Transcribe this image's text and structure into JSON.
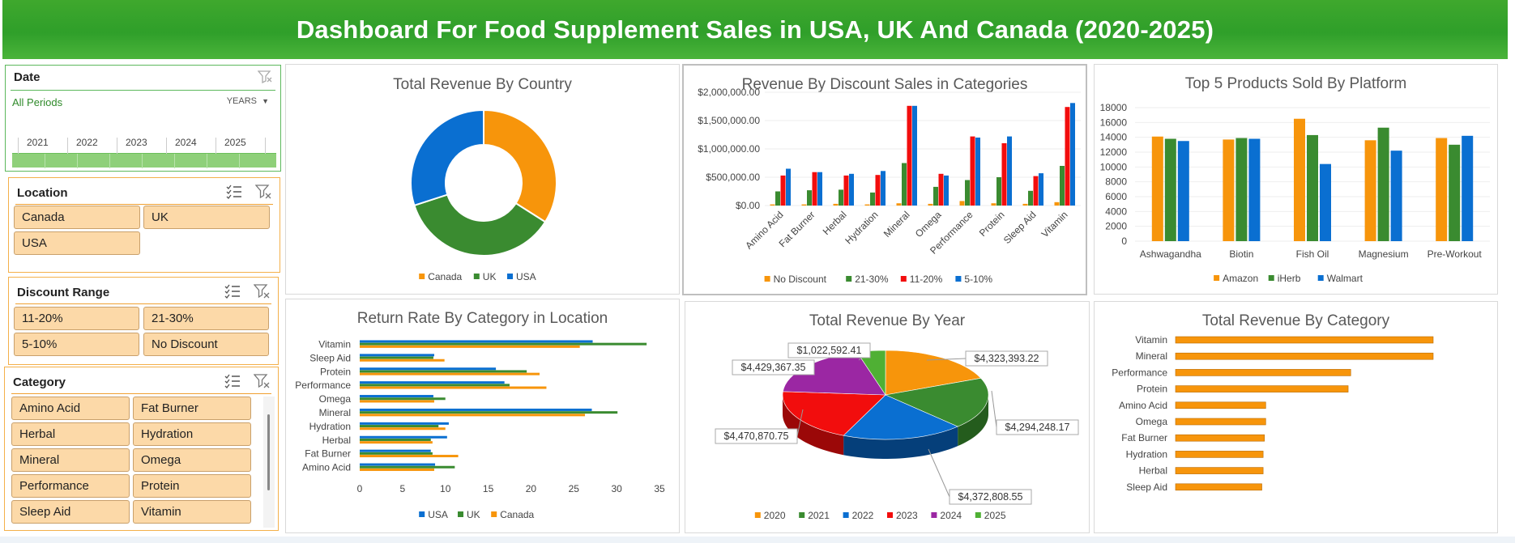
{
  "dashboard_title": "Dashboard For Food Supplement Sales in USA, UK And Canada (2020-2025)",
  "colors": {
    "orange": "#f7950b",
    "green": "#3a8b30",
    "blue": "#0a6fd1",
    "red": "#f20d0d",
    "purple": "#9b27a3",
    "light_green": "#4fb034",
    "title_green": "#34a52b"
  },
  "slicers": {
    "date": {
      "title": "Date",
      "period_label": "All Periods",
      "level": "YEARS",
      "timeline_years": [
        "2021",
        "2022",
        "2023",
        "2024",
        "2025"
      ]
    },
    "location": {
      "title": "Location",
      "items": [
        "Canada",
        "UK",
        "USA"
      ]
    },
    "discount": {
      "title": "Discount Range",
      "items": [
        "11-20%",
        "21-30%",
        "5-10%",
        "No Discount"
      ]
    },
    "category": {
      "title": "Category",
      "items": [
        "Amino Acid",
        "Fat Burner",
        "Herbal",
        "Hydration",
        "Mineral",
        "Omega",
        "Performance",
        "Protein",
        "Sleep Aid",
        "Vitamin"
      ]
    }
  },
  "chart_data": [
    {
      "id": "revenue_by_country",
      "type": "pie",
      "donut": true,
      "title": "Total Revenue By Country",
      "categories": [
        "Canada",
        "UK",
        "USA"
      ],
      "values": [
        34,
        36,
        30
      ],
      "colors": [
        "#f7950b",
        "#3a8b30",
        "#0a6fd1"
      ]
    },
    {
      "id": "discount_sales",
      "type": "bar",
      "title": "Revenue By Discount Sales in Categories",
      "categories": [
        "Amino Acid",
        "Fat Burner",
        "Herbal",
        "Hydration",
        "Mineral",
        "Omega",
        "Performance",
        "Protein",
        "Sleep Aid",
        "Vitamin"
      ],
      "yticks": [
        "$0.00",
        "$500,000.00",
        "$1,000,000.00",
        "$1,500,000.00",
        "$2,000,000.00"
      ],
      "ylim": [
        0,
        2000000
      ],
      "series": [
        {
          "name": "No Discount",
          "color": "#f7950b",
          "values": [
            20000,
            20000,
            30000,
            20000,
            40000,
            30000,
            80000,
            40000,
            30000,
            60000
          ]
        },
        {
          "name": "21-30%",
          "color": "#3a8b30",
          "values": [
            250000,
            270000,
            280000,
            230000,
            750000,
            330000,
            450000,
            500000,
            260000,
            700000
          ]
        },
        {
          "name": "11-20%",
          "color": "#f20d0d",
          "values": [
            530000,
            590000,
            530000,
            540000,
            1760000,
            560000,
            1220000,
            1100000,
            520000,
            1740000
          ]
        },
        {
          "name": "5-10%",
          "color": "#0a6fd1",
          "values": [
            650000,
            590000,
            560000,
            610000,
            1760000,
            530000,
            1200000,
            1220000,
            570000,
            1810000
          ]
        }
      ]
    },
    {
      "id": "top5_platform",
      "type": "bar",
      "title": "Top 5 Products Sold By Platform",
      "categories": [
        "Ashwagandha",
        "Biotin",
        "Fish Oil",
        "Magnesium",
        "Pre-Workout"
      ],
      "yticks": [
        "0",
        "2000",
        "4000",
        "6000",
        "8000",
        "10000",
        "12000",
        "14000",
        "16000",
        "18000"
      ],
      "ylim": [
        0,
        18000
      ],
      "series": [
        {
          "name": "Amazon",
          "color": "#f7950b",
          "values": [
            14100,
            13700,
            16500,
            13600,
            13900
          ]
        },
        {
          "name": "iHerb",
          "color": "#3a8b30",
          "values": [
            13800,
            13900,
            14300,
            15300,
            13000
          ]
        },
        {
          "name": "Walmart",
          "color": "#0a6fd1",
          "values": [
            13500,
            13800,
            10400,
            12200,
            14200
          ]
        }
      ]
    },
    {
      "id": "return_rate",
      "type": "bar",
      "orientation": "horizontal",
      "title": "Return Rate By Category in Location",
      "categories": [
        "Vitamin",
        "Sleep Aid",
        "Protein",
        "Performance",
        "Omega",
        "Mineral",
        "Hydration",
        "Herbal",
        "Fat Burner",
        "Amino Acid"
      ],
      "xticks": [
        "0",
        "5",
        "10",
        "15",
        "20",
        "25",
        "30",
        "35"
      ],
      "xlim": [
        0,
        35
      ],
      "series": [
        {
          "name": "USA",
          "color": "#0a6fd1",
          "values": [
            27.2,
            8.7,
            15.9,
            16.9,
            8.6,
            27.1,
            10.4,
            10.2,
            8.3,
            8.8
          ]
        },
        {
          "name": "UK",
          "color": "#3a8b30",
          "values": [
            33.5,
            8.6,
            19.5,
            17.5,
            10.0,
            30.1,
            9.2,
            8.3,
            8.5,
            11.1
          ]
        },
        {
          "name": "Canada",
          "color": "#f7950b",
          "values": [
            25.7,
            9.9,
            21.0,
            21.8,
            8.7,
            26.3,
            10.0,
            8.5,
            11.5,
            8.7
          ]
        }
      ]
    },
    {
      "id": "revenue_by_year",
      "type": "pie",
      "title": "Total Revenue By Year",
      "categories": [
        "2020",
        "2021",
        "2022",
        "2023",
        "2024",
        "2025"
      ],
      "values": [
        4323393.22,
        4294248.17,
        4372808.55,
        4470870.75,
        4429367.35,
        1022592.41
      ],
      "labels": [
        "$4,323,393.22",
        "$4,294,248.17",
        "$4,372,808.55",
        "$4,470,870.75",
        "$4,429,367.35",
        "$1,022,592.41"
      ],
      "colors": [
        "#f7950b",
        "#3a8b30",
        "#0a6fd1",
        "#f20d0d",
        "#9b27a3",
        "#4fb034"
      ]
    },
    {
      "id": "revenue_by_category",
      "type": "bar",
      "orientation": "horizontal",
      "title": "Total Revenue By Category",
      "categories": [
        "Vitamin",
        "Mineral",
        "Performance",
        "Protein",
        "Amino Acid",
        "Omega",
        "Fat Burner",
        "Hydration",
        "Herbal",
        "Sleep Aid"
      ],
      "values": [
        1.0,
        1.0,
        0.68,
        0.67,
        0.35,
        0.35,
        0.345,
        0.34,
        0.34,
        0.335
      ],
      "color": "#f7950b"
    }
  ]
}
